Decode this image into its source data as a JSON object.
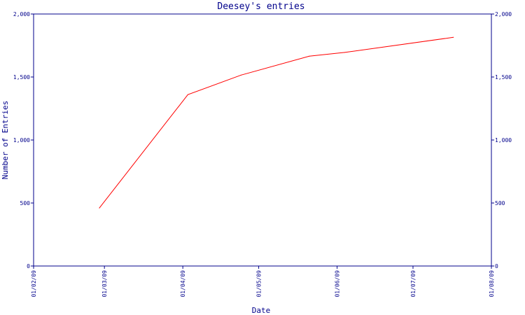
{
  "chart_data": {
    "type": "line",
    "title": "Deesey's entries",
    "xlabel": "Date",
    "ylabel": "Number of Entries",
    "x_ticks": [
      "01/02/09",
      "01/03/09",
      "01/04/09",
      "01/05/09",
      "01/06/09",
      "01/07/09",
      "01/08/09"
    ],
    "xlim": [
      "2009-02-01",
      "2009-08-01"
    ],
    "y_ticks": [
      "0",
      "500",
      "1,000",
      "1,500",
      "2,000"
    ],
    "ylim": [
      0,
      2000
    ],
    "grid": false,
    "y_axis_labels_both_sides": true,
    "series": [
      {
        "color": "#ff0000",
        "points": [
          {
            "x": "2009-02-27",
            "y": 460
          },
          {
            "x": "2009-04-03",
            "y": 1360
          },
          {
            "x": "2009-04-24",
            "y": 1515
          },
          {
            "x": "2009-05-21",
            "y": 1665
          },
          {
            "x": "2009-06-04",
            "y": 1695
          },
          {
            "x": "2009-07-17",
            "y": 1815
          }
        ]
      }
    ]
  }
}
